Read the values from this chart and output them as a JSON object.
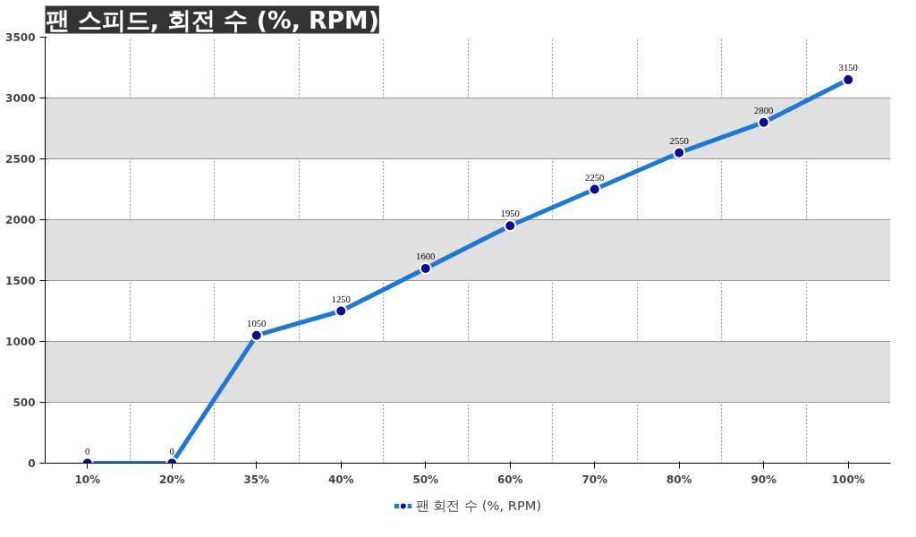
{
  "chart_data": {
    "type": "line",
    "title": "팬 스피드, 회전 수 (%, RPM)",
    "categories": [
      "10%",
      "20%",
      "35%",
      "40%",
      "50%",
      "60%",
      "70%",
      "80%",
      "90%",
      "100%"
    ],
    "series": [
      {
        "name": "팬 회전 수 (%, RPM)",
        "color": "#1a78d8",
        "values": [
          0,
          0,
          1050,
          1250,
          1600,
          1950,
          2250,
          2550,
          2800,
          3150
        ]
      }
    ],
    "ylim": [
      0,
      3500
    ],
    "yticks": [
      0,
      500,
      1000,
      1500,
      2000,
      2500,
      3000,
      3500
    ],
    "grid": true,
    "legend": "bottom",
    "marker": "circle",
    "line_style": "solid",
    "data_labels": true
  }
}
